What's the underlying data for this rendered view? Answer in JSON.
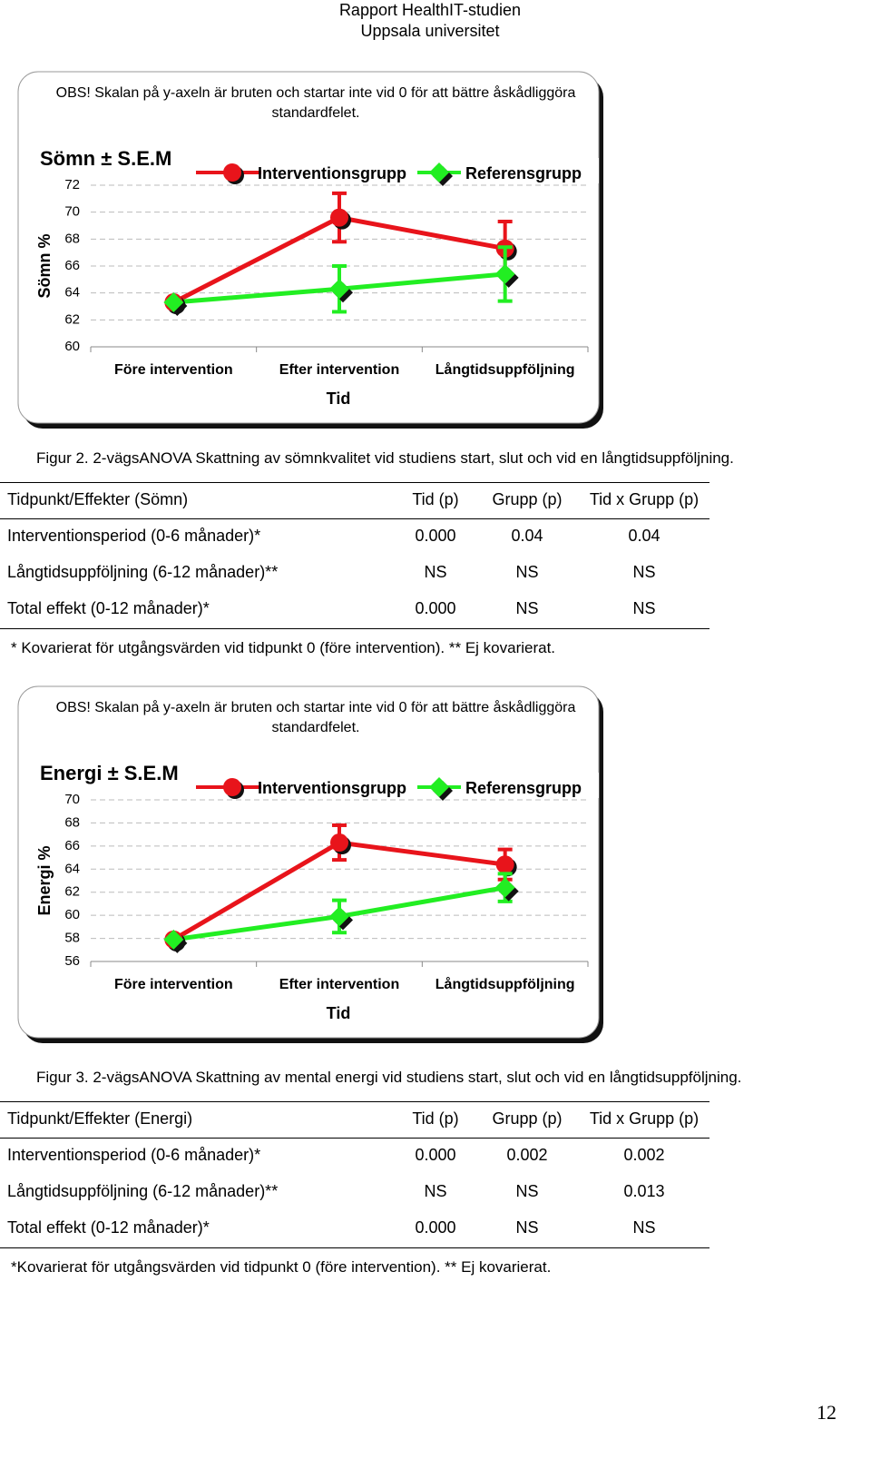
{
  "header": {
    "line1": "Rapport HealthIT-studien",
    "line2": "Uppsala universitet"
  },
  "figures": [
    {
      "note": "OBS! Skalan på y-axeln är bruten och startar inte vid 0 för att bättre åskådliggöra standardfelet.",
      "chart_data": {
        "type": "line",
        "title": "Sömn ± S.E.M",
        "y_label": "Sömn %",
        "x_label": "Tid",
        "categories": [
          "Före intervention",
          "Efter intervention",
          "Långtidsuppföljning"
        ],
        "series": [
          {
            "name": "Interventionsgrupp",
            "color": "#e8141b",
            "marker": "circle",
            "values": [
              63.3,
              69.6,
              67.3
            ],
            "errors": [
              0,
              1.8,
              2.0
            ]
          },
          {
            "name": "Referensgrupp",
            "color": "#22ee22",
            "marker": "diamond",
            "values": [
              63.3,
              64.3,
              65.4
            ],
            "errors": [
              0,
              1.7,
              2.0
            ]
          }
        ],
        "ylim": [
          60,
          72
        ],
        "yticks": [
          60,
          62,
          64,
          66,
          68,
          70,
          72
        ],
        "grid": true
      },
      "caption": "Figur 2. 2-vägsANOVA Skattning av sömnkvalitet vid studiens start, slut och vid en långtidsuppföljning.",
      "table": {
        "header": [
          "Tidpunkt/Effekter (Sömn)",
          "Tid (p)",
          "Grupp (p)",
          "Tid x Grupp (p)"
        ],
        "rows": [
          [
            "Interventionsperiod (0-6 månader)*",
            "0.000",
            "0.04",
            "0.04"
          ],
          [
            "Långtidsuppföljning (6-12 månader)**",
            "NS",
            "NS",
            "NS"
          ],
          [
            "Total effekt (0-12 månader)*",
            "0.000",
            "NS",
            "NS"
          ]
        ]
      },
      "footnote": "* Kovarierat för utgångsvärden vid tidpunkt 0 (före intervention). ** Ej kovarierat."
    },
    {
      "note": "OBS! Skalan på y-axeln är bruten och startar inte vid 0 för att bättre åskådliggöra standardfelet.",
      "chart_data": {
        "type": "line",
        "title": "Energi ± S.E.M",
        "y_label": "Energi %",
        "x_label": "Tid",
        "categories": [
          "Före intervention",
          "Efter intervention",
          "Långtidsuppföljning"
        ],
        "series": [
          {
            "name": "Interventionsgrupp",
            "color": "#e8141b",
            "marker": "circle",
            "values": [
              57.9,
              66.3,
              64.4
            ],
            "errors": [
              0,
              1.5,
              1.3
            ]
          },
          {
            "name": "Referensgrupp",
            "color": "#22ee22",
            "marker": "diamond",
            "values": [
              57.9,
              59.9,
              62.4
            ],
            "errors": [
              0,
              1.4,
              1.2
            ]
          }
        ],
        "ylim": [
          56,
          70
        ],
        "yticks": [
          56,
          58,
          60,
          62,
          64,
          66,
          68,
          70
        ],
        "grid": true
      },
      "caption": "Figur 3. 2-vägsANOVA Skattning av mental energi vid studiens start, slut och vid en långtidsuppföljning.",
      "table": {
        "header": [
          "Tidpunkt/Effekter (Energi)",
          "Tid (p)",
          "Grupp (p)",
          "Tid x Grupp (p)"
        ],
        "rows": [
          [
            "Interventionsperiod (0-6 månader)*",
            "0.000",
            "0.002",
            "0.002"
          ],
          [
            "Långtidsuppföljning (6-12 månader)**",
            "NS",
            "NS",
            "0.013"
          ],
          [
            "Total effekt (0-12 månader)*",
            "0.000",
            "NS",
            "NS"
          ]
        ]
      },
      "footnote": "*Kovarierat för utgångsvärden vid tidpunkt 0 (före intervention). ** Ej kovarierat."
    }
  ],
  "page_number": "12"
}
